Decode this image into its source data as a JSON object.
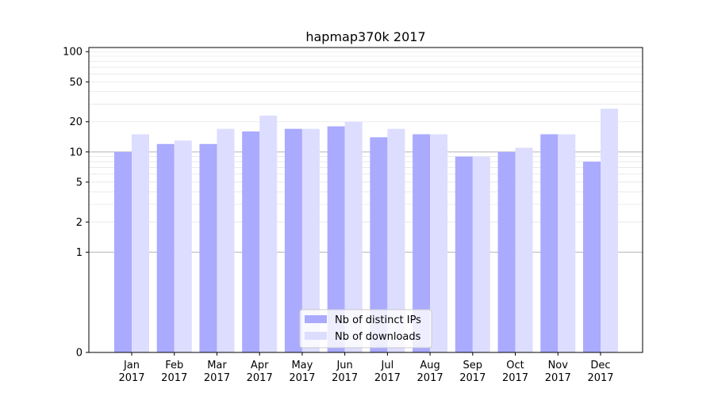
{
  "chart_data": {
    "type": "bar",
    "title": "hapmap370k 2017",
    "xlabel": "",
    "ylabel": "",
    "categories": [
      [
        "Jan",
        "2017"
      ],
      [
        "Feb",
        "2017"
      ],
      [
        "Mar",
        "2017"
      ],
      [
        "Apr",
        "2017"
      ],
      [
        "May",
        "2017"
      ],
      [
        "Jun",
        "2017"
      ],
      [
        "Jul",
        "2017"
      ],
      [
        "Aug",
        "2017"
      ],
      [
        "Sep",
        "2017"
      ],
      [
        "Oct",
        "2017"
      ],
      [
        "Nov",
        "2017"
      ],
      [
        "Dec",
        "2017"
      ]
    ],
    "series": [
      {
        "name": "Nb of distinct IPs",
        "color": "#aaaaff",
        "values": [
          10,
          12,
          12,
          16,
          17,
          18,
          14,
          15,
          9,
          10,
          15,
          8
        ]
      },
      {
        "name": "Nb of downloads",
        "color": "#ddddff",
        "values": [
          15,
          13,
          17,
          23,
          17,
          20,
          17,
          15,
          9,
          11,
          15,
          27
        ]
      }
    ],
    "yscale": "symlog",
    "ylim": [
      0,
      110
    ],
    "yticks": [
      0,
      1,
      2,
      5,
      10,
      20,
      50,
      100
    ],
    "major_grid_lines": [
      1,
      10
    ],
    "grid": true,
    "legend_position": "lower center"
  }
}
